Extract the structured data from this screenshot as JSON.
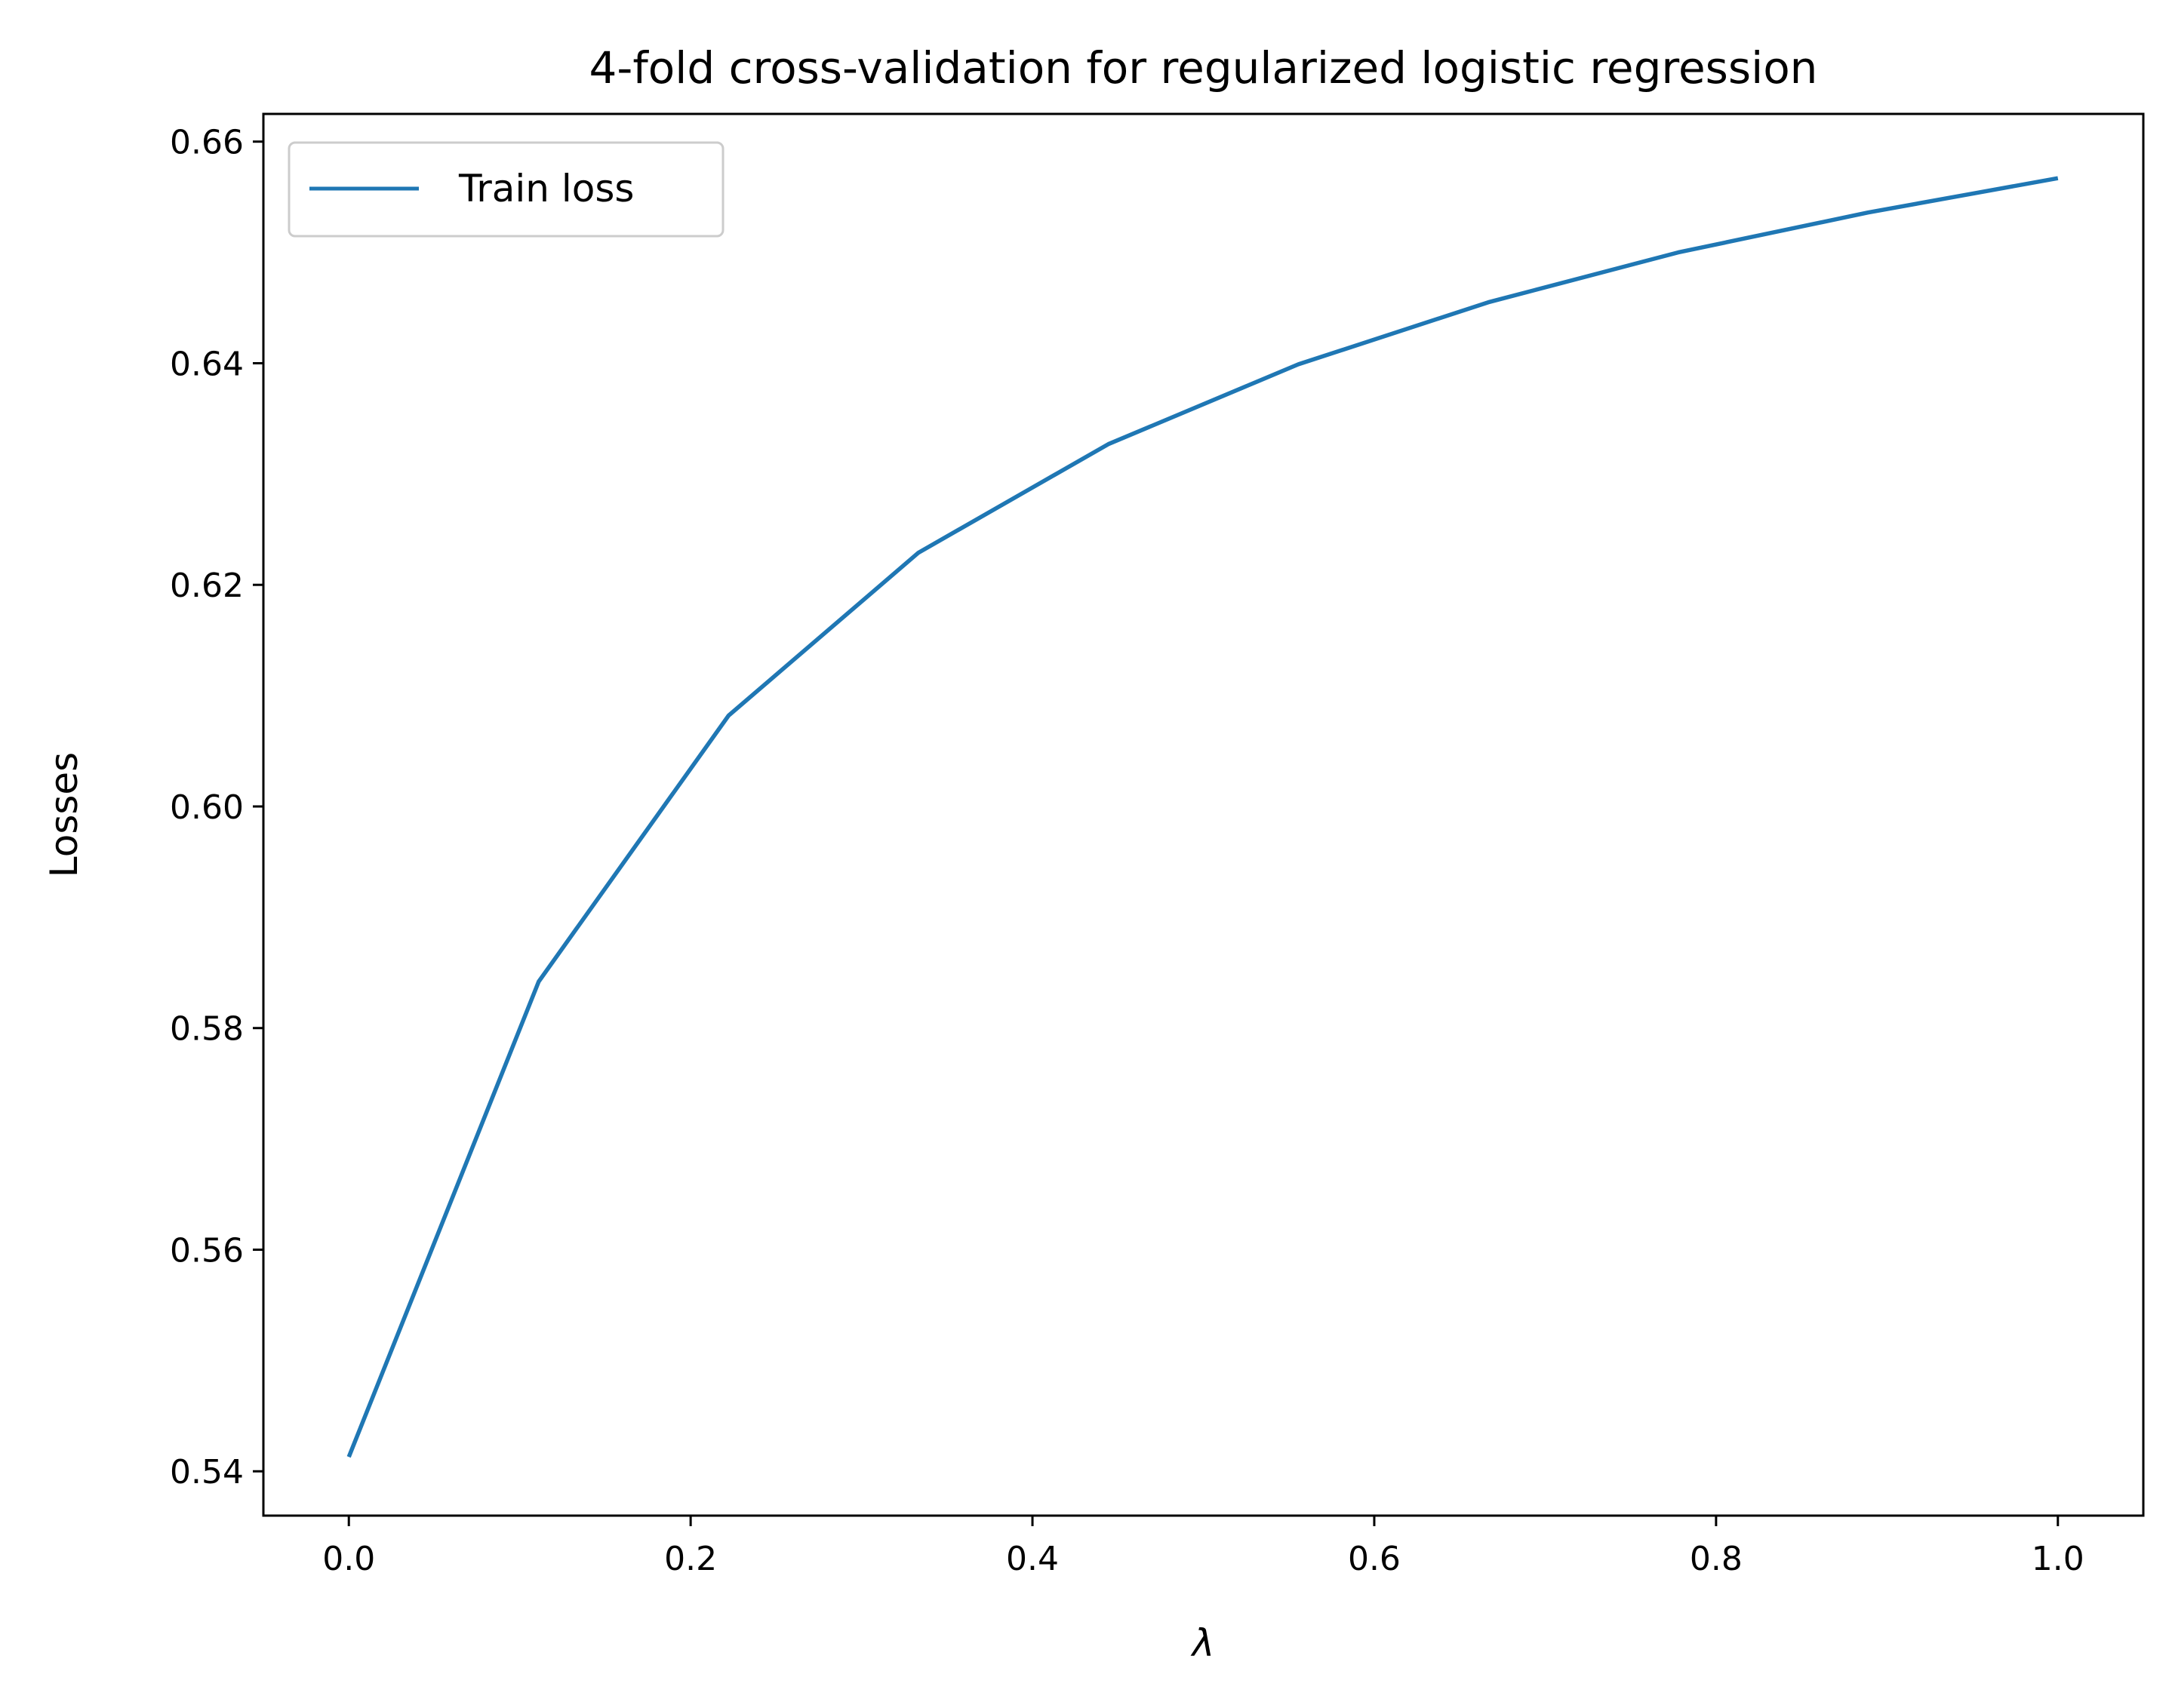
{
  "chart_data": {
    "type": "line",
    "title": "4-fold cross-validation for regularized logistic regression",
    "xlabel": "λ",
    "ylabel": "Losses",
    "xlim": [
      -0.05,
      1.05
    ],
    "ylim": [
      0.536,
      0.6625
    ],
    "xticks": [
      0.0,
      0.2,
      0.4,
      0.6,
      0.8,
      1.0
    ],
    "xtick_labels": [
      "0.0",
      "0.2",
      "0.4",
      "0.6",
      "0.8",
      "1.0"
    ],
    "yticks": [
      0.54,
      0.56,
      0.58,
      0.6,
      0.62,
      0.64,
      0.66
    ],
    "ytick_labels": [
      "0.54",
      "0.56",
      "0.58",
      "0.60",
      "0.62",
      "0.64",
      "0.66"
    ],
    "grid": false,
    "legend_position": "top-left",
    "series": [
      {
        "name": "Train loss",
        "color": "#1f77b4",
        "x": [
          0.0,
          0.1111,
          0.2222,
          0.3333,
          0.4444,
          0.5556,
          0.6667,
          0.7778,
          0.8889,
          1.0
        ],
        "y": [
          0.5413,
          0.5842,
          0.6082,
          0.6229,
          0.6327,
          0.6399,
          0.6455,
          0.65,
          0.6536,
          0.6567
        ]
      }
    ]
  }
}
